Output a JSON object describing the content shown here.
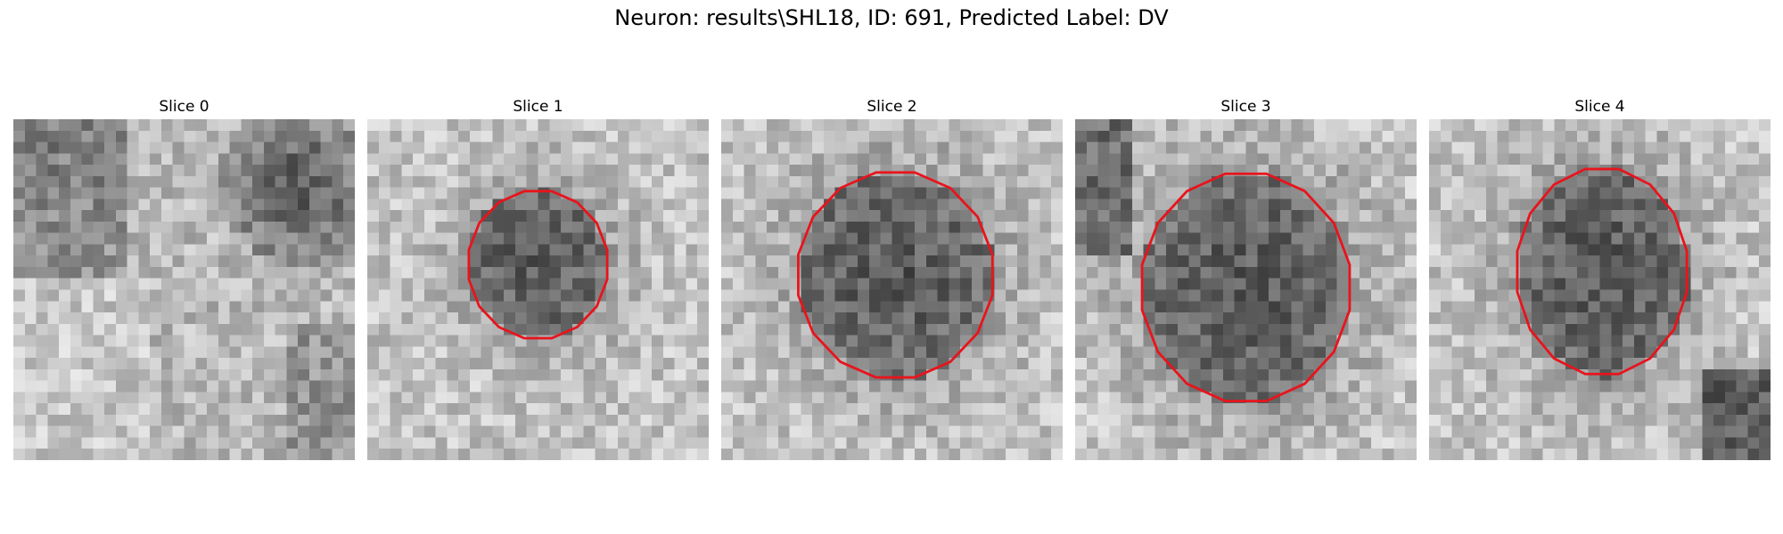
{
  "figure": {
    "title": "Neuron: results\\SHL18, ID: 691, Predicted Label: DV"
  },
  "colors": {
    "contour": "#e8141c",
    "background": "#ffffff"
  },
  "panels": [
    {
      "label": "Slice 0",
      "has_contour": false,
      "image": "grayscale-patch-bright-diagonal-band-dark-top-right"
    },
    {
      "label": "Slice 1",
      "has_contour": true,
      "image": "grayscale-patch-dark-blob-center"
    },
    {
      "label": "Slice 2",
      "has_contour": true,
      "image": "grayscale-patch-dark-blob-center"
    },
    {
      "label": "Slice 3",
      "has_contour": true,
      "image": "grayscale-patch-dark-blob-center"
    },
    {
      "label": "Slice 4",
      "has_contour": true,
      "image": "grayscale-patch-dark-blob-center"
    }
  ]
}
